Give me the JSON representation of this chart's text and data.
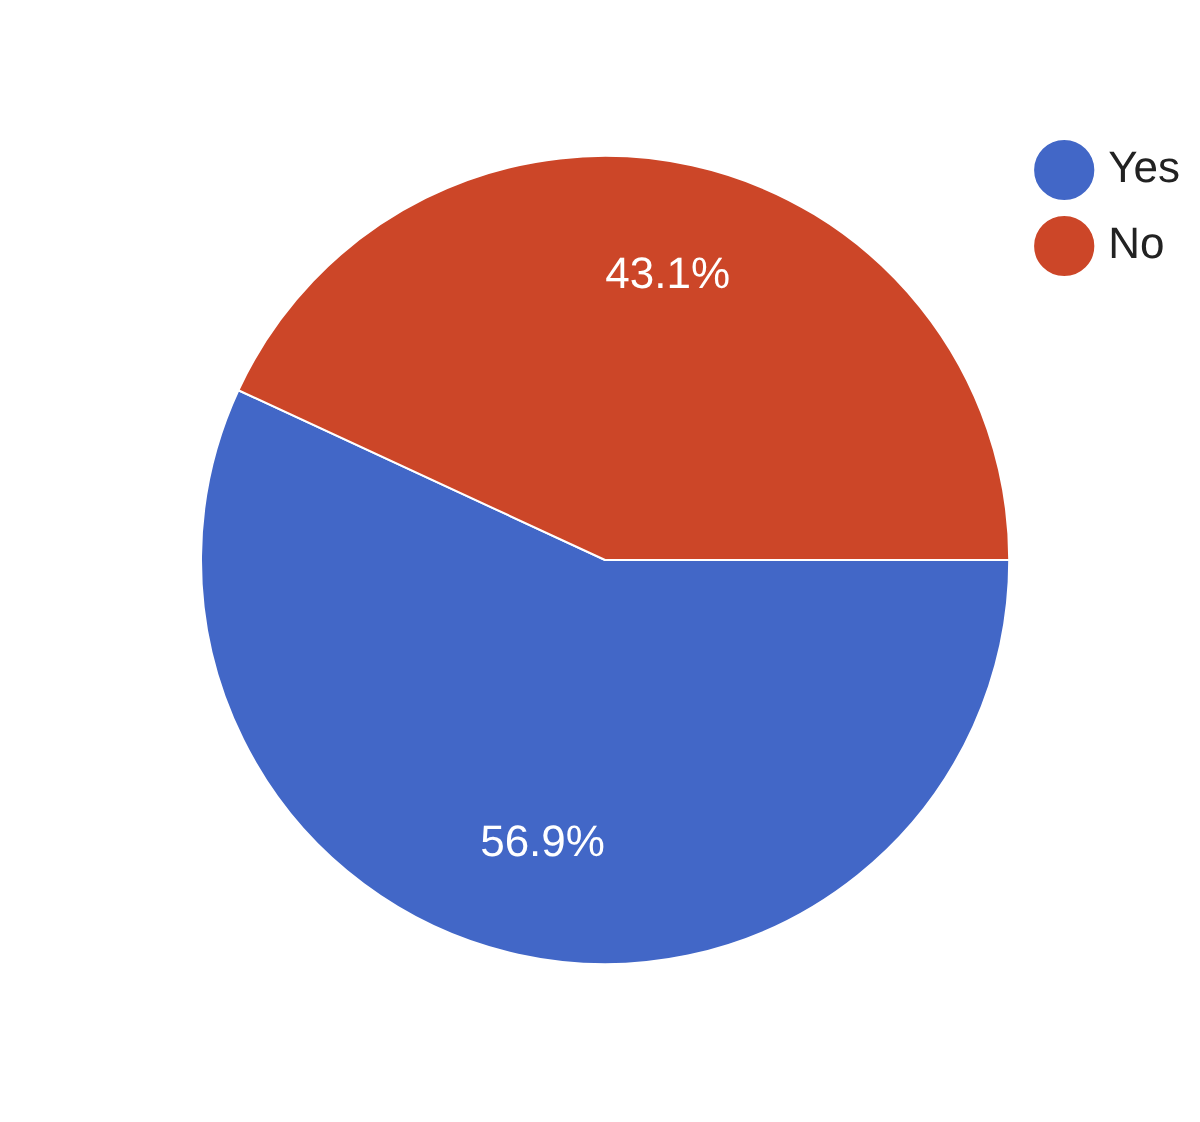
{
  "chart_data": {
    "type": "pie",
    "categories": [
      "Yes",
      "No"
    ],
    "values": [
      56.9,
      43.1
    ],
    "colors": [
      "#4267c7",
      "#cc4628"
    ],
    "value_labels": [
      "56.9%",
      "43.1%"
    ],
    "legend": "top right"
  }
}
